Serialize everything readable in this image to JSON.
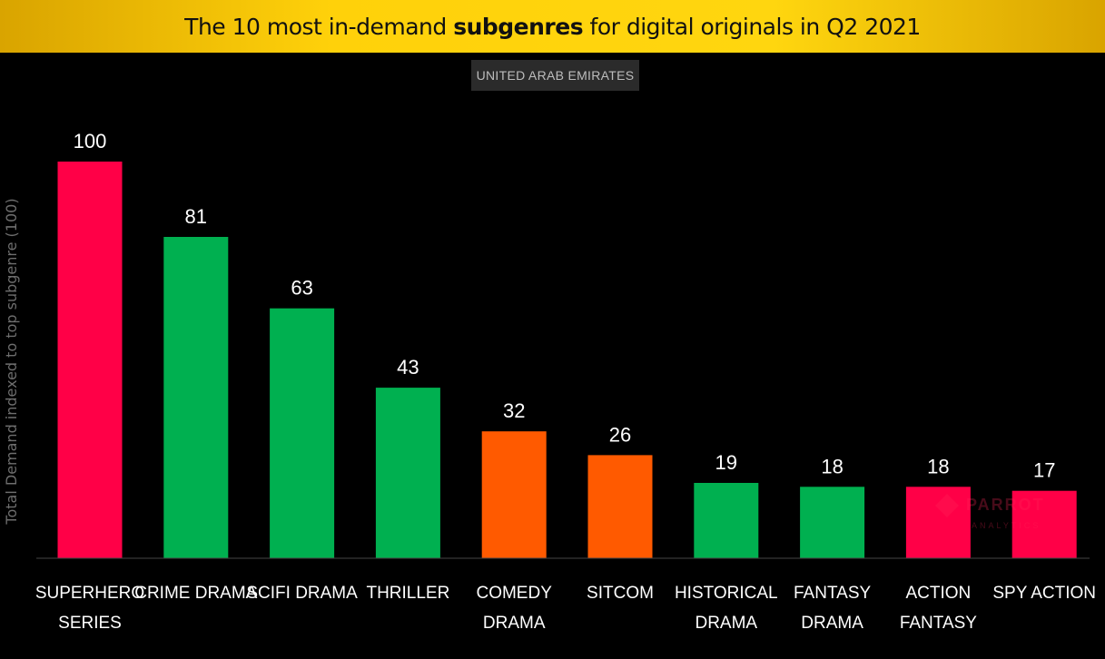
{
  "header": {
    "title_pre": "The 10 most in-demand ",
    "title_bold": "subgenres",
    "title_post": " for digital originals in Q2 2021",
    "background_color": "#ffd10a"
  },
  "region": "UNITED ARAB EMIRATES",
  "watermark": {
    "text": "PARROT",
    "sub": "ANALYTICS"
  },
  "chart_data": {
    "type": "bar",
    "title": "The 10 most in-demand subgenres for digital originals in Q2 2021",
    "ylabel": "Total Demand indexed to top subgenre (100)",
    "xlabel": "",
    "ylim": [
      0,
      100
    ],
    "grid": false,
    "categories": [
      [
        "SUPERHERO",
        "SERIES"
      ],
      [
        "CRIME DRAMA"
      ],
      [
        "SCIFI DRAMA"
      ],
      [
        "THRILLER"
      ],
      [
        "COMEDY",
        "DRAMA"
      ],
      [
        "SITCOM"
      ],
      [
        "HISTORICAL",
        "DRAMA"
      ],
      [
        "FANTASY",
        "DRAMA"
      ],
      [
        "ACTION",
        "FANTASY"
      ],
      [
        "SPY ACTION"
      ]
    ],
    "values": [
      100,
      81,
      63,
      43,
      32,
      26,
      19,
      18,
      18,
      17
    ],
    "colors": [
      "#ff0047",
      "#00b050",
      "#00b050",
      "#00b050",
      "#ff5a00",
      "#ff5a00",
      "#00b050",
      "#00b050",
      "#ff0047",
      "#ff0047"
    ]
  }
}
